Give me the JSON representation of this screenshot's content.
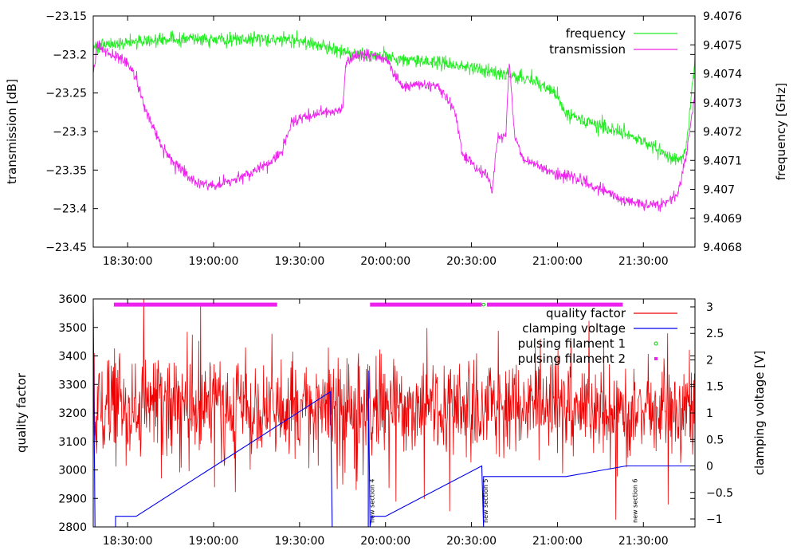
{
  "chart_data": [
    {
      "type": "line",
      "name": "top",
      "xlabel": "",
      "ylabel": "transmission [dB]",
      "y2label": "frequency [GHz]",
      "ylim": [
        -23.45,
        -23.15
      ],
      "y2lim": [
        9.4068,
        9.4076
      ],
      "xlim": [
        -0.2,
        3.3
      ],
      "yticks": [
        -23.15,
        -23.2,
        -23.25,
        -23.3,
        -23.35,
        -23.4,
        -23.45
      ],
      "yticklabels": [
        "−23.15",
        "−23.2",
        "−23.25",
        "−23.3",
        "−23.35",
        "−23.4",
        "−23.45"
      ],
      "y2ticks": [
        9.4076,
        9.4075,
        9.4074,
        9.4073,
        9.4072,
        9.4071,
        9.407,
        9.4069,
        9.4068
      ],
      "y2ticklabels": [
        "9.4076",
        "9.4075",
        "9.4074",
        "9.4073",
        "9.4072",
        "9.4071",
        "9.407",
        "9.4069",
        "9.4068"
      ],
      "xtick_hours": [
        0,
        0.5,
        1,
        1.5,
        2,
        2.5,
        3
      ],
      "xticklabels": [
        "18:30:00",
        "19:00:00",
        "19:30:00",
        "20:00:00",
        "20:30:00",
        "21:00:00",
        "21:30:00"
      ],
      "legend_position": "top-right",
      "series": [
        {
          "name": "frequency",
          "axis": "y2",
          "color": "#22ee22",
          "noise": 2e-05,
          "points": [
            [
              -0.2,
              9.40749
            ],
            [
              0,
              9.40751
            ],
            [
              0.3,
              9.40752
            ],
            [
              0.6,
              9.40752
            ],
            [
              0.95,
              9.40752
            ],
            [
              1.05,
              9.40751
            ],
            [
              1.15,
              9.40749
            ],
            [
              1.3,
              9.40747
            ],
            [
              1.45,
              9.40746
            ],
            [
              1.6,
              9.40745
            ],
            [
              1.8,
              9.40744
            ],
            [
              2.0,
              9.40742
            ],
            [
              2.2,
              9.4074
            ],
            [
              2.35,
              9.40738
            ],
            [
              2.45,
              9.40735
            ],
            [
              2.5,
              9.40732
            ],
            [
              2.55,
              9.40726
            ],
            [
              2.65,
              9.40724
            ],
            [
              2.8,
              9.40721
            ],
            [
              2.95,
              9.40718
            ],
            [
              3.1,
              9.40713
            ],
            [
              3.15,
              9.40711
            ],
            [
              3.2,
              9.4071
            ],
            [
              3.25,
              9.40714
            ],
            [
              3.3,
              9.40745
            ]
          ]
        },
        {
          "name": "transmission",
          "axis": "y",
          "color": "#ee22ee",
          "noise": 0.006,
          "points": [
            [
              -0.2,
              -23.23
            ],
            [
              -0.18,
              -23.19
            ],
            [
              -0.1,
              -23.2
            ],
            [
              0,
              -23.21
            ],
            [
              0.05,
              -23.23
            ],
            [
              0.1,
              -23.27
            ],
            [
              0.2,
              -23.32
            ],
            [
              0.3,
              -23.35
            ],
            [
              0.4,
              -23.365
            ],
            [
              0.5,
              -23.37
            ],
            [
              0.6,
              -23.365
            ],
            [
              0.7,
              -23.355
            ],
            [
              0.8,
              -23.345
            ],
            [
              0.9,
              -23.325
            ],
            [
              0.95,
              -23.29
            ],
            [
              1.05,
              -23.28
            ],
            [
              1.15,
              -23.275
            ],
            [
              1.25,
              -23.27
            ],
            [
              1.27,
              -23.21
            ],
            [
              1.35,
              -23.2
            ],
            [
              1.5,
              -23.205
            ],
            [
              1.55,
              -23.225
            ],
            [
              1.6,
              -23.24
            ],
            [
              1.8,
              -23.24
            ],
            [
              1.9,
              -23.27
            ],
            [
              1.95,
              -23.33
            ],
            [
              2.05,
              -23.35
            ],
            [
              2.1,
              -23.36
            ],
            [
              2.12,
              -23.375
            ],
            [
              2.15,
              -23.31
            ],
            [
              2.2,
              -23.305
            ],
            [
              2.22,
              -23.205
            ],
            [
              2.25,
              -23.305
            ],
            [
              2.3,
              -23.335
            ],
            [
              2.4,
              -23.345
            ],
            [
              2.5,
              -23.355
            ],
            [
              2.6,
              -23.36
            ],
            [
              2.7,
              -23.37
            ],
            [
              2.8,
              -23.38
            ],
            [
              2.9,
              -23.39
            ],
            [
              3.0,
              -23.395
            ],
            [
              3.1,
              -23.395
            ],
            [
              3.15,
              -23.39
            ],
            [
              3.2,
              -23.38
            ],
            [
              3.25,
              -23.33
            ],
            [
              3.3,
              -23.25
            ]
          ]
        }
      ]
    },
    {
      "type": "line",
      "name": "bottom",
      "xlabel": "",
      "ylabel": "quality factor",
      "y2label": "clamping voltage [V]",
      "ylim": [
        2800,
        3600
      ],
      "y2lim": [
        -1.15,
        3.15
      ],
      "xlim": [
        -0.2,
        3.3
      ],
      "yticks": [
        3600,
        3500,
        3400,
        3300,
        3200,
        3100,
        3000,
        2900,
        2800
      ],
      "yticklabels": [
        "3600",
        "3500",
        "3400",
        "3300",
        "3200",
        "3100",
        "3000",
        "2900",
        "2800"
      ],
      "y2ticks": [
        3,
        2.5,
        2,
        1.5,
        1,
        0.5,
        0,
        -0.5,
        -1
      ],
      "y2ticklabels": [
        "3",
        "2.5",
        "2",
        "1.5",
        "1",
        "0.5",
        "0",
        "−0.5",
        "−1"
      ],
      "xtick_hours": [
        0,
        0.5,
        1,
        1.5,
        2,
        2.5,
        3
      ],
      "xticklabels": [
        "18:30:00",
        "19:00:00",
        "19:30:00",
        "20:00:00",
        "20:30:00",
        "21:00:00",
        "21:30:00"
      ],
      "legend_position": "top-right",
      "series": [
        {
          "name": "quality factor",
          "axis": "y",
          "color": "#ee0000",
          "mean": 3220,
          "spread": 110,
          "range": [
            -0.2,
            3.3
          ]
        },
        {
          "name": "clamping voltage",
          "axis": "y2",
          "color": "#0000ee",
          "points": [
            [
              -0.2,
              3.0
            ],
            [
              -0.19,
              -1.15
            ],
            [
              -0.07,
              -1.15
            ],
            [
              -0.07,
              -0.95
            ],
            [
              0.05,
              -0.95
            ],
            [
              1.18,
              1.4
            ],
            [
              1.19,
              -1.15
            ],
            [
              1.4,
              -1.15
            ],
            [
              1.4,
              1.8
            ],
            [
              1.41,
              -1.15
            ],
            [
              1.42,
              -0.95
            ],
            [
              1.5,
              -0.95
            ],
            [
              2.06,
              0.0
            ],
            [
              2.07,
              -1.15
            ],
            [
              2.07,
              -0.2
            ],
            [
              2.45,
              -0.2
            ],
            [
              2.55,
              -0.2
            ],
            [
              2.9,
              0.0
            ],
            [
              3.3,
              0.0
            ]
          ]
        },
        {
          "name": "pulsing filament 1",
          "axis": "y",
          "color": "#00cc00",
          "marker": "circle",
          "segments": [
            [
              2.07,
              2.08
            ]
          ]
        },
        {
          "name": "pulsing filament 2",
          "axis": "y",
          "color": "#ee22ee",
          "marker": "square",
          "level": 3580,
          "segments": [
            [
              -0.08,
              0.87
            ],
            [
              1.41,
              2.06
            ],
            [
              2.09,
              2.88
            ]
          ]
        }
      ],
      "annotations": [
        {
          "text": "new section 4",
          "x": 1.42
        },
        {
          "text": "new section 5",
          "x": 2.08
        },
        {
          "text": "new section 6",
          "x": 2.95
        }
      ]
    }
  ]
}
